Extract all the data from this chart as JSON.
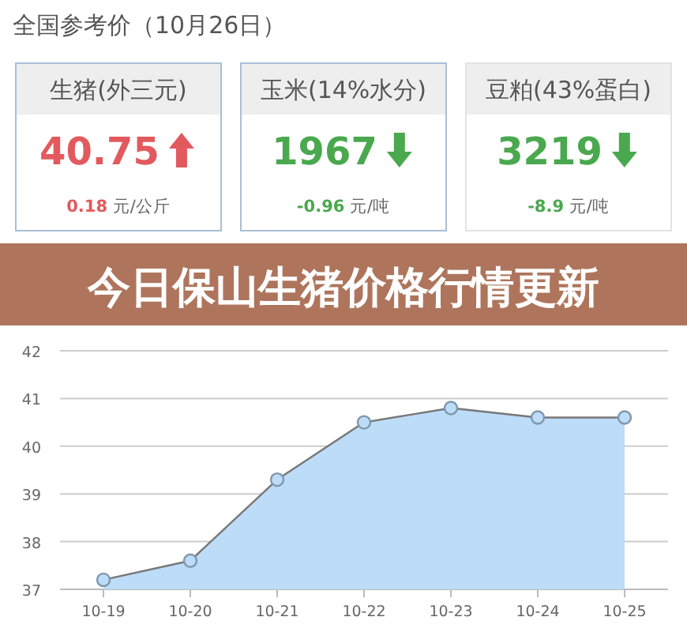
{
  "chart_data": [
    {
      "type": "other",
      "title": "全国参考价（10月26日）",
      "categories": [
        "生猪(外三元)",
        "玉米(14%水分)",
        "豆粕(43%蛋白)"
      ],
      "values": [
        40.75,
        1967,
        3219
      ],
      "data_labels": true,
      "annotations": [
        "0.18 元/公斤",
        "-0.96 元/吨",
        "-8.9 元/吨"
      ]
    },
    {
      "type": "area",
      "title": "今日保山生猪价格行情更新",
      "categories": [
        "10-19",
        "10-20",
        "10-21",
        "10-22",
        "10-23",
        "10-24",
        "10-25"
      ],
      "series": [
        {
          "color": "#bcdcf7",
          "values": [
            37.2,
            37.6,
            39.3,
            40.5,
            40.8,
            40.6,
            40.6
          ]
        }
      ],
      "ylim": [
        37,
        42
      ],
      "yticks": [
        37,
        38,
        39,
        40,
        41,
        42
      ],
      "grid": "y",
      "marker": "circle"
    }
  ]
}
